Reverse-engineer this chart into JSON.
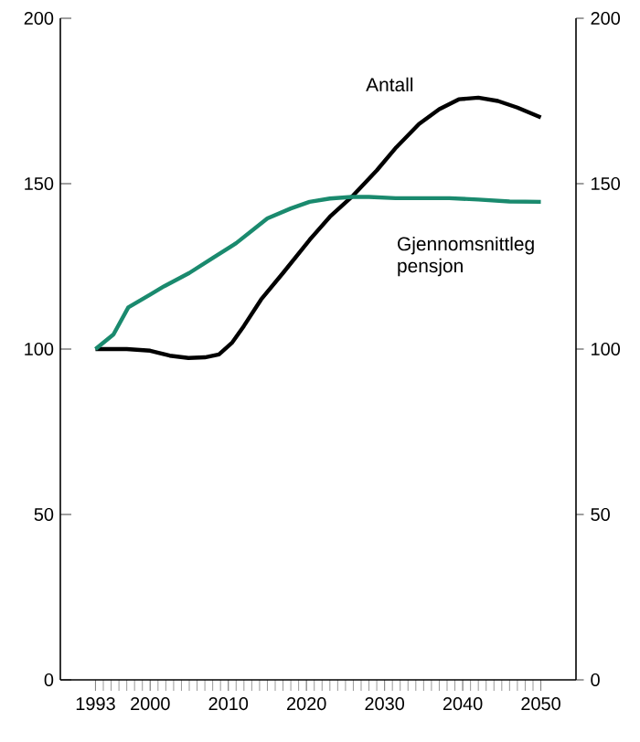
{
  "chart_data": {
    "type": "line",
    "xlim": [
      1988.5,
      2054.5
    ],
    "ylim": [
      0,
      200
    ],
    "y2lim": [
      0,
      200
    ],
    "xticks": [
      1993,
      2000,
      2010,
      2020,
      2030,
      2040,
      2050
    ],
    "yticks": [
      0,
      50,
      100,
      150,
      200
    ],
    "y2ticks": [
      0,
      50,
      100,
      150,
      200
    ],
    "series": [
      {
        "name": "Antall",
        "color": "#000000",
        "x": [
          1993,
          1997,
          2000,
          2002.5,
          2004.9,
          2007,
          2008.8,
          2010.5,
          2012,
          2014.2,
          2017,
          2020.4,
          2023,
          2025.8,
          2029,
          2031.5,
          2034.4,
          2037,
          2039.5,
          2042,
          2044.5,
          2047,
          2050
        ],
        "values": [
          100,
          100,
          99.5,
          98,
          97.3,
          97.5,
          98.4,
          102,
          107,
          115,
          123,
          133,
          140,
          146,
          154,
          161,
          168,
          172.5,
          175.5,
          176,
          175,
          173,
          170
        ]
      },
      {
        "name": "Gjennomsnittleg pensjon",
        "color": "#1a8a6e",
        "x": [
          1993,
          1995.3,
          1997.2,
          2000,
          2001.8,
          2005,
          2008,
          2011,
          2015,
          2018,
          2020.4,
          2023,
          2025.8,
          2028,
          2031.4,
          2035,
          2038.3,
          2042,
          2046,
          2050
        ],
        "values": [
          100,
          104.4,
          112.6,
          116.5,
          119,
          123,
          127.5,
          132,
          139.5,
          142.5,
          144.5,
          145.5,
          146,
          146,
          145.6,
          145.6,
          145.6,
          145.2,
          144.6,
          144.5
        ]
      }
    ]
  }
}
